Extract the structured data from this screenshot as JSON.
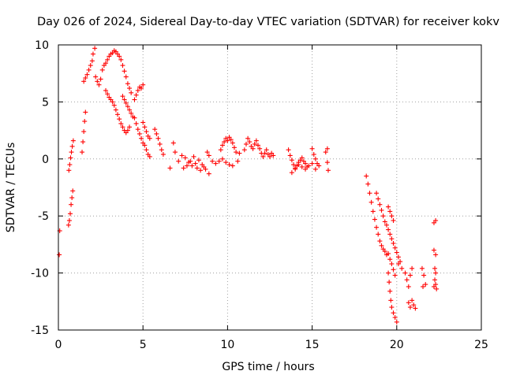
{
  "chart_data": {
    "type": "scatter",
    "title": "Day 026 of 2024, Sidereal Day-to-day VTEC variation (SDTVAR) for receiver kokv",
    "xlabel": "GPS time / hours",
    "ylabel": "SDTVAR / TECUs",
    "xlim": [
      0,
      25
    ],
    "ylim": [
      -15,
      10
    ],
    "xticks": [
      0,
      5,
      10,
      15,
      20,
      25
    ],
    "yticks": [
      10,
      5,
      0,
      -5,
      -10,
      -15
    ],
    "grid": true,
    "marker": "plus",
    "series": [
      {
        "name": "SDTVAR",
        "color": "#ff0000",
        "points": [
          [
            0.05,
            -8.4
          ],
          [
            0.08,
            -6.3
          ],
          [
            0.6,
            -5.8
          ],
          [
            0.65,
            -5.4
          ],
          [
            0.7,
            -4.8
          ],
          [
            0.75,
            -4.0
          ],
          [
            0.8,
            -3.4
          ],
          [
            0.85,
            -2.8
          ],
          [
            0.62,
            -1.0
          ],
          [
            0.67,
            -0.5
          ],
          [
            0.72,
            0.1
          ],
          [
            0.77,
            0.6
          ],
          [
            0.82,
            1.1
          ],
          [
            0.88,
            1.6
          ],
          [
            1.4,
            0.6
          ],
          [
            1.45,
            1.5
          ],
          [
            1.5,
            2.4
          ],
          [
            1.55,
            3.3
          ],
          [
            1.6,
            4.1
          ],
          [
            1.5,
            6.8
          ],
          [
            1.6,
            7.1
          ],
          [
            1.7,
            7.4
          ],
          [
            1.8,
            7.8
          ],
          [
            1.9,
            8.2
          ],
          [
            2.0,
            8.6
          ],
          [
            2.05,
            9.2
          ],
          [
            2.15,
            9.7
          ],
          [
            2.2,
            7.2
          ],
          [
            2.3,
            6.8
          ],
          [
            2.4,
            6.5
          ],
          [
            2.5,
            7.0
          ],
          [
            2.6,
            7.8
          ],
          [
            2.7,
            8.2
          ],
          [
            2.8,
            8.4
          ],
          [
            2.9,
            8.7
          ],
          [
            3.0,
            9.0
          ],
          [
            3.1,
            9.2
          ],
          [
            3.2,
            9.3
          ],
          [
            3.3,
            9.5
          ],
          [
            3.4,
            9.4
          ],
          [
            3.5,
            9.2
          ],
          [
            3.6,
            9.0
          ],
          [
            3.7,
            8.7
          ],
          [
            3.8,
            8.2
          ],
          [
            3.9,
            7.7
          ],
          [
            4.0,
            7.2
          ],
          [
            4.1,
            6.6
          ],
          [
            4.2,
            6.2
          ],
          [
            4.3,
            5.8
          ],
          [
            2.8,
            6.0
          ],
          [
            2.9,
            5.7
          ],
          [
            3.0,
            5.4
          ],
          [
            3.1,
            5.2
          ],
          [
            3.2,
            5.0
          ],
          [
            3.3,
            4.7
          ],
          [
            3.4,
            4.3
          ],
          [
            3.5,
            3.9
          ],
          [
            3.6,
            3.5
          ],
          [
            3.7,
            3.1
          ],
          [
            3.8,
            2.8
          ],
          [
            3.9,
            2.5
          ],
          [
            4.0,
            2.3
          ],
          [
            4.1,
            2.5
          ],
          [
            4.2,
            2.8
          ],
          [
            3.8,
            5.5
          ],
          [
            3.9,
            5.2
          ],
          [
            4.0,
            4.9
          ],
          [
            4.1,
            4.6
          ],
          [
            4.2,
            4.3
          ],
          [
            4.3,
            4.0
          ],
          [
            4.4,
            3.7
          ],
          [
            4.5,
            5.2
          ],
          [
            4.6,
            5.6
          ],
          [
            4.7,
            6.0
          ],
          [
            4.8,
            6.3
          ],
          [
            4.9,
            6.2
          ],
          [
            5.0,
            6.5
          ],
          [
            4.5,
            3.6
          ],
          [
            4.6,
            3.1
          ],
          [
            4.7,
            2.6
          ],
          [
            4.8,
            2.2
          ],
          [
            4.9,
            1.8
          ],
          [
            5.0,
            1.4
          ],
          [
            5.1,
            1.2
          ],
          [
            5.2,
            0.8
          ],
          [
            5.3,
            0.4
          ],
          [
            5.4,
            0.2
          ],
          [
            5.0,
            3.2
          ],
          [
            5.1,
            2.8
          ],
          [
            5.2,
            2.4
          ],
          [
            5.3,
            2.0
          ],
          [
            5.4,
            1.8
          ],
          [
            5.7,
            2.6
          ],
          [
            5.8,
            2.2
          ],
          [
            5.9,
            1.8
          ],
          [
            6.0,
            1.3
          ],
          [
            6.1,
            0.8
          ],
          [
            6.2,
            0.4
          ],
          [
            6.6,
            -0.8
          ],
          [
            6.8,
            1.4
          ],
          [
            6.9,
            0.6
          ],
          [
            7.1,
            -0.2
          ],
          [
            7.3,
            0.3
          ],
          [
            7.5,
            0.1
          ],
          [
            7.7,
            -0.3
          ],
          [
            7.9,
            -0.6
          ],
          [
            8.1,
            -0.4
          ],
          [
            8.3,
            -0.1
          ],
          [
            8.5,
            -0.5
          ],
          [
            8.7,
            -0.9
          ],
          [
            8.9,
            -1.3
          ],
          [
            7.4,
            -0.8
          ],
          [
            7.6,
            -0.6
          ],
          [
            7.8,
            -0.2
          ],
          [
            8.0,
            0.2
          ],
          [
            8.2,
            -0.8
          ],
          [
            8.4,
            -1.0
          ],
          [
            8.6,
            -0.7
          ],
          [
            8.8,
            0.6
          ],
          [
            8.9,
            0.3
          ],
          [
            9.1,
            -0.2
          ],
          [
            9.3,
            -0.4
          ],
          [
            9.5,
            -0.2
          ],
          [
            9.7,
            0.0
          ],
          [
            9.9,
            -0.3
          ],
          [
            10.1,
            -0.5
          ],
          [
            10.3,
            -0.6
          ],
          [
            9.6,
            0.8
          ],
          [
            9.7,
            1.2
          ],
          [
            9.8,
            1.5
          ],
          [
            9.9,
            1.8
          ],
          [
            10.0,
            1.6
          ],
          [
            10.1,
            1.9
          ],
          [
            10.2,
            1.7
          ],
          [
            10.3,
            1.4
          ],
          [
            10.4,
            1.0
          ],
          [
            10.5,
            0.6
          ],
          [
            10.6,
            -0.2
          ],
          [
            10.7,
            0.5
          ],
          [
            11.0,
            0.8
          ],
          [
            11.1,
            1.3
          ],
          [
            11.2,
            1.8
          ],
          [
            11.3,
            1.5
          ],
          [
            11.4,
            1.1
          ],
          [
            11.5,
            0.9
          ],
          [
            11.6,
            1.3
          ],
          [
            11.7,
            1.6
          ],
          [
            11.8,
            1.2
          ],
          [
            11.9,
            0.9
          ],
          [
            12.0,
            0.5
          ],
          [
            12.1,
            0.2
          ],
          [
            12.2,
            0.5
          ],
          [
            12.3,
            0.8
          ],
          [
            12.4,
            0.4
          ],
          [
            12.5,
            0.2
          ],
          [
            12.6,
            0.5
          ],
          [
            12.7,
            0.3
          ],
          [
            13.6,
            0.8
          ],
          [
            13.7,
            0.3
          ],
          [
            13.8,
            -0.1
          ],
          [
            13.9,
            -0.5
          ],
          [
            14.0,
            -0.9
          ],
          [
            14.1,
            -0.6
          ],
          [
            14.2,
            -0.3
          ],
          [
            14.3,
            -0.1
          ],
          [
            14.4,
            0.1
          ],
          [
            14.5,
            -0.2
          ],
          [
            14.6,
            -0.4
          ],
          [
            14.7,
            -0.7
          ],
          [
            13.8,
            -1.2
          ],
          [
            14.0,
            -0.8
          ],
          [
            14.2,
            -0.5
          ],
          [
            14.4,
            -0.7
          ],
          [
            14.6,
            -0.9
          ],
          [
            14.8,
            -0.6
          ],
          [
            15.0,
            -0.4
          ],
          [
            15.2,
            -0.9
          ],
          [
            15.0,
            0.9
          ],
          [
            15.1,
            0.4
          ],
          [
            15.2,
            0.0
          ],
          [
            15.3,
            -0.4
          ],
          [
            15.4,
            -0.6
          ],
          [
            15.8,
            0.6
          ],
          [
            15.9,
            0.9
          ],
          [
            15.9,
            -0.3
          ],
          [
            15.95,
            -1.0
          ],
          [
            18.2,
            -1.5
          ],
          [
            18.3,
            -2.2
          ],
          [
            18.4,
            -3.0
          ],
          [
            18.5,
            -3.8
          ],
          [
            18.6,
            -4.6
          ],
          [
            18.7,
            -5.3
          ],
          [
            18.8,
            -6.0
          ],
          [
            18.9,
            -6.6
          ],
          [
            19.0,
            -7.2
          ],
          [
            19.1,
            -7.6
          ],
          [
            19.2,
            -7.9
          ],
          [
            19.3,
            -8.1
          ],
          [
            19.4,
            -8.4
          ],
          [
            19.5,
            -8.3
          ],
          [
            19.6,
            -8.8
          ],
          [
            19.7,
            -9.2
          ],
          [
            19.8,
            -9.7
          ],
          [
            19.9,
            -10.2
          ],
          [
            18.8,
            -3.0
          ],
          [
            18.9,
            -3.5
          ],
          [
            19.0,
            -4.0
          ],
          [
            19.1,
            -4.5
          ],
          [
            19.2,
            -5.0
          ],
          [
            19.3,
            -5.5
          ],
          [
            19.4,
            -5.8
          ],
          [
            19.5,
            -6.2
          ],
          [
            19.6,
            -6.6
          ],
          [
            19.7,
            -7.0
          ],
          [
            19.8,
            -7.4
          ],
          [
            19.9,
            -7.8
          ],
          [
            20.0,
            -8.2
          ],
          [
            20.1,
            -8.6
          ],
          [
            20.2,
            -9.0
          ],
          [
            19.5,
            -4.2
          ],
          [
            19.6,
            -4.6
          ],
          [
            19.7,
            -5.0
          ],
          [
            19.8,
            -5.4
          ],
          [
            19.5,
            -10.0
          ],
          [
            19.55,
            -10.8
          ],
          [
            19.6,
            -11.6
          ],
          [
            19.65,
            -12.4
          ],
          [
            19.7,
            -13.0
          ],
          [
            19.8,
            -13.5
          ],
          [
            19.9,
            -13.9
          ],
          [
            20.0,
            -14.3
          ],
          [
            20.1,
            -9.2
          ],
          [
            20.3,
            -9.6
          ],
          [
            20.5,
            -10.0
          ],
          [
            20.6,
            -10.6
          ],
          [
            20.7,
            -11.2
          ],
          [
            20.8,
            -10.2
          ],
          [
            20.9,
            -9.6
          ],
          [
            20.7,
            -12.6
          ],
          [
            20.8,
            -13.0
          ],
          [
            20.9,
            -12.4
          ],
          [
            21.0,
            -12.8
          ],
          [
            21.1,
            -13.1
          ],
          [
            21.5,
            -9.6
          ],
          [
            21.6,
            -10.2
          ],
          [
            21.7,
            -11.0
          ],
          [
            21.55,
            -11.2
          ],
          [
            22.2,
            -5.6
          ],
          [
            22.3,
            -5.4
          ],
          [
            22.2,
            -8.0
          ],
          [
            22.3,
            -8.4
          ],
          [
            22.25,
            -9.6
          ],
          [
            22.3,
            -10.0
          ],
          [
            22.25,
            -10.6
          ],
          [
            22.3,
            -11.0
          ],
          [
            22.35,
            -11.4
          ],
          [
            22.2,
            -11.2
          ]
        ]
      }
    ]
  }
}
